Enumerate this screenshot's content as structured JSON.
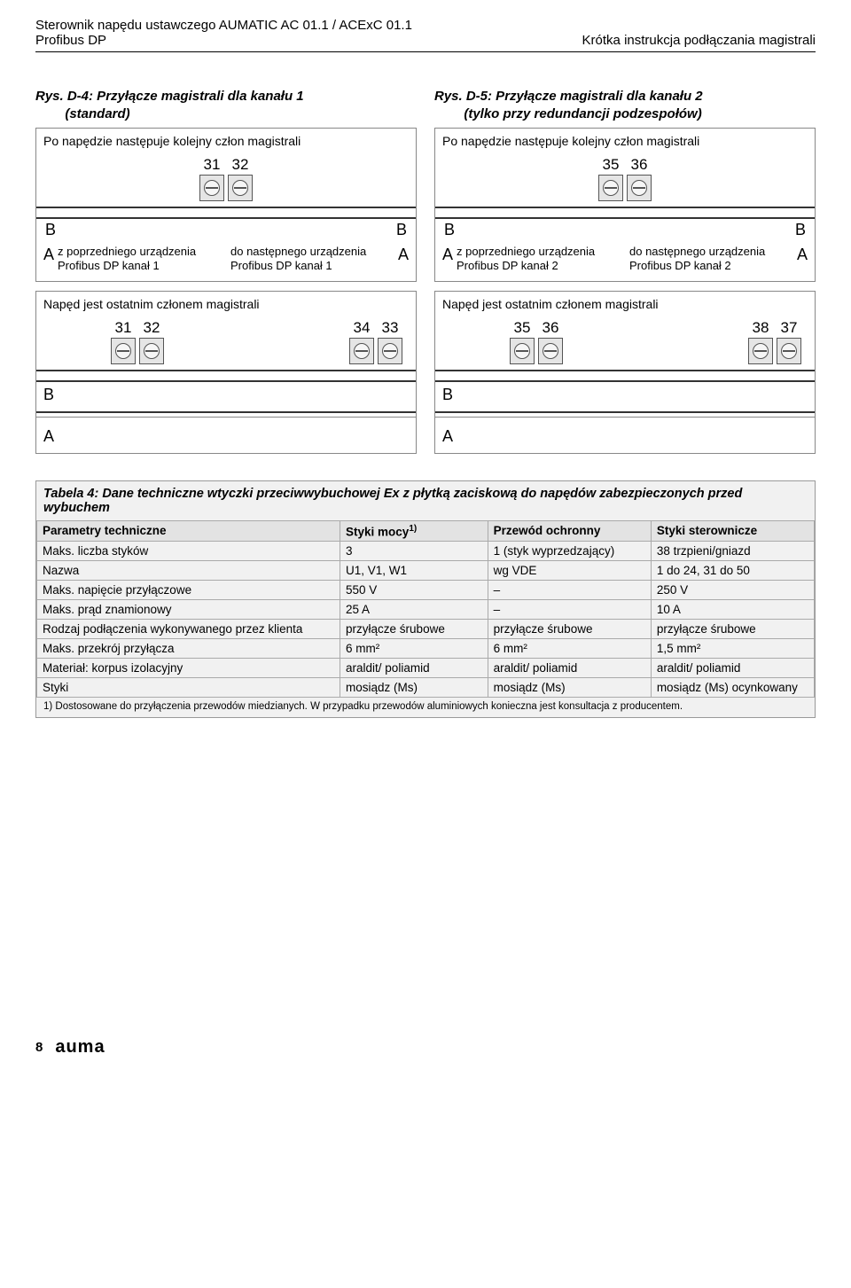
{
  "header": {
    "left_line1": "Sterownik napędu ustawczego AUMATIC AC 01.1 / ACExC 01.1",
    "left_line2": "Profibus DP",
    "right": "Krótka instrukcja podłączania magistrali"
  },
  "figures": {
    "left": {
      "title_l1": "Rys. D-4: Przyłącze magistrali dla kanału 1",
      "title_l2": "(standard)",
      "top_caption": "Po napędzie następuje kolejny człon magistrali",
      "top_terms": [
        "31",
        "32"
      ],
      "rail_lbl": "B",
      "dev_left_a": "A",
      "dev_left_text": "z poprzedniego urządzenia Profibus DP kanał 1",
      "dev_right_a": "A",
      "dev_right_text": "do następnego urządzenia Profibus DP kanał 1",
      "mid_caption": "Napęd jest ostatnim członem magistrali",
      "mid_terms_l": [
        "31",
        "32"
      ],
      "mid_terms_r": [
        "34",
        "33"
      ],
      "bottom_lbl_B": "B",
      "bottom_lbl_A": "A"
    },
    "right": {
      "title_l1": "Rys. D-5: Przyłącze magistrali dla kanału 2",
      "title_l2": "(tylko przy redundancji podzespołów)",
      "top_caption": "Po napędzie następuje kolejny człon magistrali",
      "top_terms": [
        "35",
        "36"
      ],
      "rail_lbl": "B",
      "dev_left_a": "A",
      "dev_left_text": "z poprzedniego urządzenia Profibus DP kanał 2",
      "dev_right_a": "A",
      "dev_right_text": "do następnego urządzenia Profibus DP kanał 2",
      "mid_caption": "Napęd jest ostatnim członem magistrali",
      "mid_terms_l": [
        "35",
        "36"
      ],
      "mid_terms_r": [
        "38",
        "37"
      ],
      "bottom_lbl_B": "B",
      "bottom_lbl_A": "A"
    }
  },
  "table": {
    "title": "Tabela 4: Dane techniczne wtyczki przeciwwybuchowej Ex z płytką zaciskową do napędów zabezpieczonych przed wybuchem",
    "columns": [
      "Parametry techniczne",
      "Styki mocy",
      "Przewód ochronny",
      "Styki sterownicze"
    ],
    "col_sup": "1)",
    "rows": [
      [
        "Maks. liczba styków",
        "3",
        "1 (styk wyprzedzający)",
        "38 trzpieni/gniazd"
      ],
      [
        "Nazwa",
        "U1, V1, W1",
        "wg VDE",
        "1 do 24, 31 do 50"
      ],
      [
        "Maks. napięcie przyłączowe",
        "550 V",
        "–",
        "250 V"
      ],
      [
        "Maks. prąd znamionowy",
        "25 A",
        "–",
        "10 A"
      ],
      [
        "Rodzaj podłączenia wykonywanego przez klienta",
        "przyłącze śrubowe",
        "przyłącze śrubowe",
        "przyłącze śrubowe"
      ],
      [
        "Maks. przekrój przyłącza",
        "6 mm²",
        "6 mm²",
        "1,5 mm²"
      ],
      [
        "Materiał: korpus izolacyjny",
        "araldit/ poliamid",
        "araldit/ poliamid",
        "araldit/ poliamid"
      ],
      [
        "Styki",
        "mosiądz (Ms)",
        "mosiądz (Ms)",
        "mosiądz (Ms) ocynkowany"
      ]
    ],
    "footnote": "1)  Dostosowane do przyłączenia przewodów miedzianych. W przypadku przewodów aluminiowych konieczna jest konsultacja z producentem.",
    "col_widths": [
      "39%",
      "19%",
      "21%",
      "21%"
    ]
  },
  "footer": {
    "page_num": "8",
    "logo": "auma"
  },
  "colors": {
    "border": "#888888",
    "grid": "#aaaaaa",
    "bg_table": "#f1f1f1",
    "th_bg": "#e3e3e3",
    "terminal_bg": "#e5e5e5"
  }
}
